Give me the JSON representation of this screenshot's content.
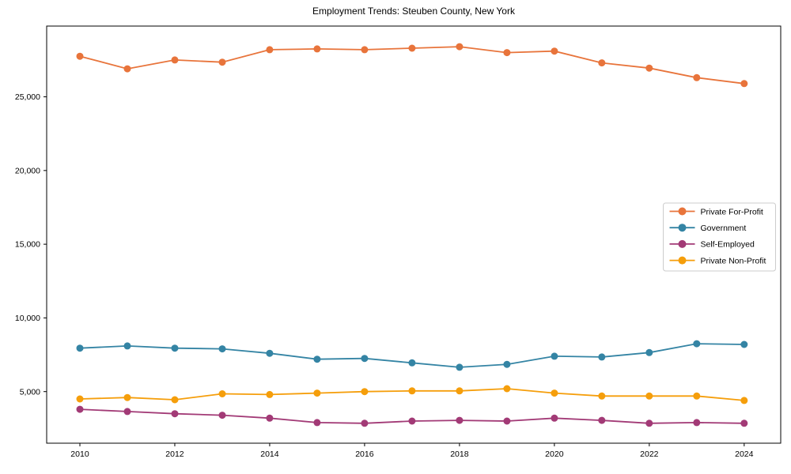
{
  "title": "Employment Trends: Steuben County, New York",
  "chart_data": {
    "type": "line",
    "title": "Employment Trends: Steuben County, New York",
    "xlabel": "",
    "ylabel": "",
    "grid": false,
    "legend_position": "right-center",
    "xlim": [
      2009.3,
      2024.77
    ],
    "ylim": [
      1500,
      29800
    ],
    "x": [
      2010,
      2011,
      2012,
      2013,
      2014,
      2015,
      2016,
      2017,
      2018,
      2019,
      2020,
      2021,
      2022,
      2023,
      2024
    ],
    "xticks": [
      2010,
      2012,
      2014,
      2016,
      2018,
      2020,
      2022,
      2024
    ],
    "xtick_labels": [
      "2010",
      "2012",
      "2014",
      "2016",
      "2018",
      "2020",
      "2022",
      "2024"
    ],
    "yticks": [
      5000,
      10000,
      15000,
      20000,
      25000
    ],
    "ytick_labels": [
      "5,000",
      "10,000",
      "15,000",
      "20,000",
      "25,000"
    ],
    "series": [
      {
        "name": "Private For-Profit",
        "color": "#e8743b",
        "values": [
          27750,
          26900,
          27500,
          27350,
          28200,
          28250,
          28200,
          28300,
          28400,
          28000,
          28100,
          27300,
          26950,
          26300,
          25900
        ]
      },
      {
        "name": "Government",
        "color": "#3484a4",
        "values": [
          7950,
          8100,
          7950,
          7900,
          7600,
          7200,
          7250,
          6950,
          6650,
          6850,
          7400,
          7350,
          7650,
          8250,
          8200
        ]
      },
      {
        "name": "Self-Employed",
        "color": "#a23a76",
        "values": [
          3800,
          3650,
          3500,
          3400,
          3200,
          2900,
          2850,
          3000,
          3050,
          3000,
          3200,
          3050,
          2850,
          2900,
          2850
        ]
      },
      {
        "name": "Private Non-Profit",
        "color": "#f59e0b",
        "values": [
          4500,
          4600,
          4450,
          4850,
          4800,
          4900,
          5000,
          5050,
          5050,
          5200,
          4900,
          4700,
          4700,
          4700,
          4400
        ]
      }
    ]
  }
}
